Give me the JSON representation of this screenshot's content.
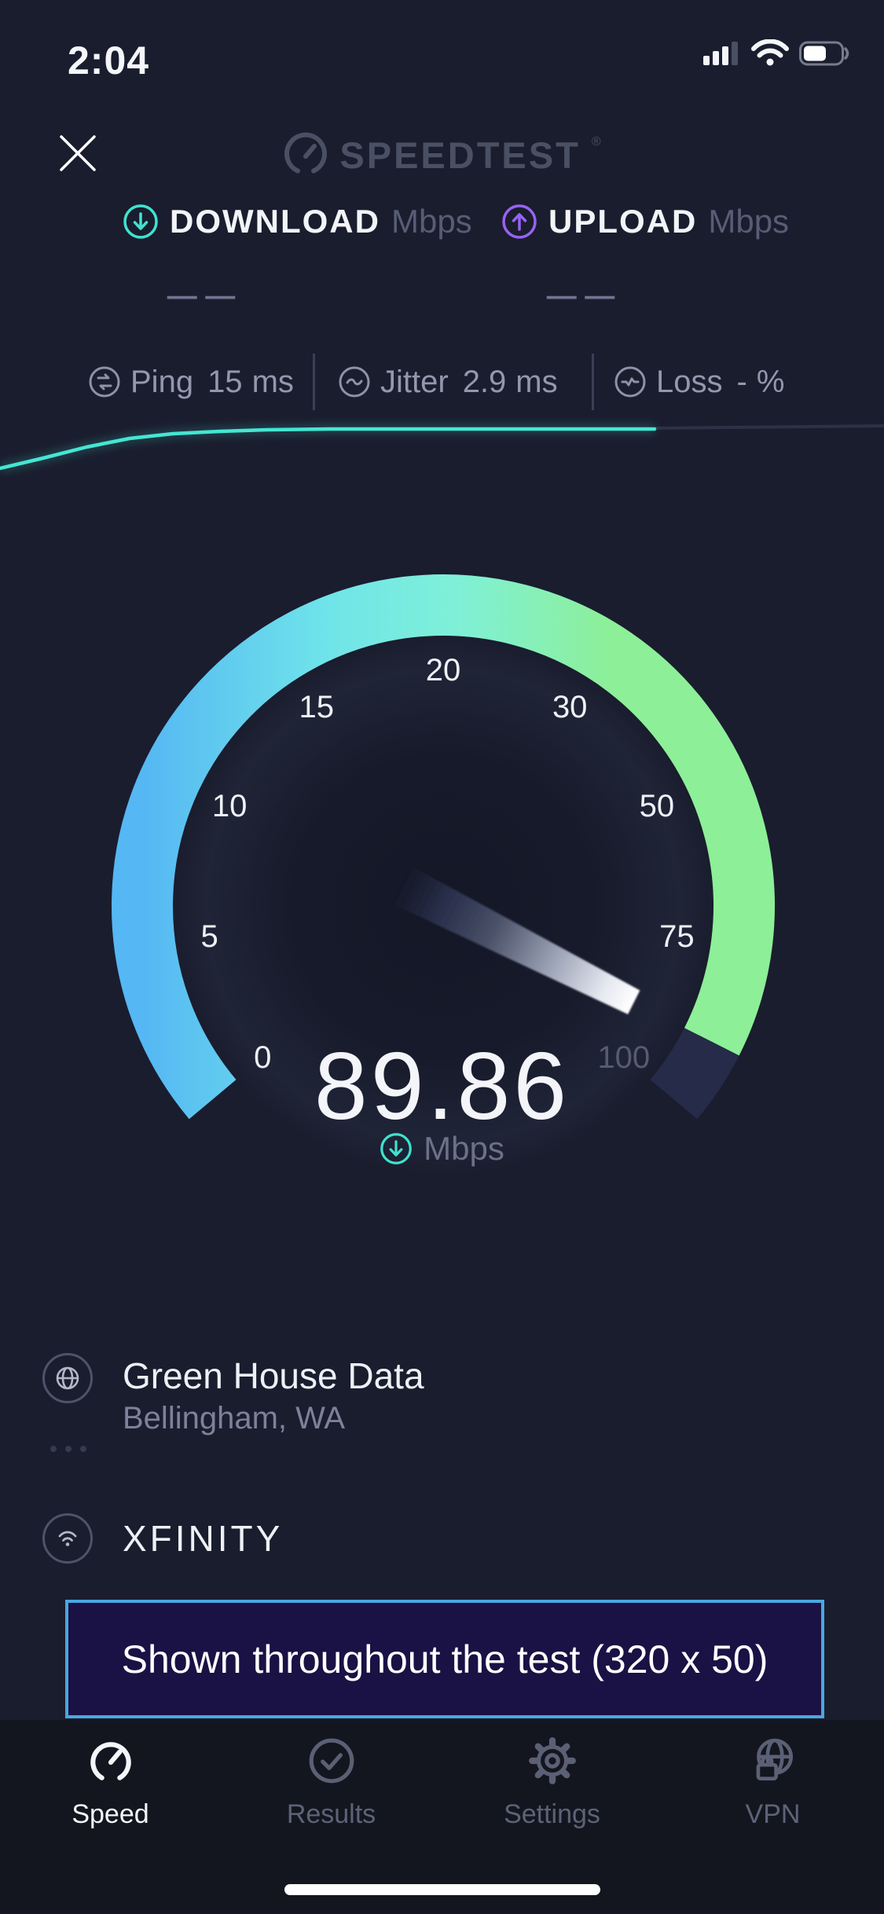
{
  "status_bar": {
    "time": "2:04"
  },
  "header": {
    "logo_text": "SPEEDTEST",
    "trademark": "®"
  },
  "metrics": {
    "download": {
      "label": "DOWNLOAD",
      "unit": "Mbps",
      "placeholder": "— —"
    },
    "upload": {
      "label": "UPLOAD",
      "unit": "Mbps",
      "placeholder": "— —"
    }
  },
  "stats": {
    "ping": {
      "label": "Ping",
      "value": "15",
      "unit": "ms"
    },
    "jitter": {
      "label": "Jitter",
      "value": "2.9",
      "unit": "ms"
    },
    "loss": {
      "label": "Loss",
      "value": "-",
      "unit": "%"
    }
  },
  "gauge": {
    "value": 89.86,
    "value_display": "89.86",
    "unit": "Mbps",
    "ticks": [
      0,
      5,
      10,
      15,
      20,
      30,
      50,
      75,
      100
    ],
    "dim_ticks": [
      100
    ],
    "start_angle": -130,
    "end_angle": 130
  },
  "sparkline": {
    "lit_points": [
      [
        0,
        596
      ],
      [
        55,
        583
      ],
      [
        110,
        569
      ],
      [
        165,
        558
      ],
      [
        220,
        552
      ],
      [
        280,
        549
      ],
      [
        340,
        547
      ],
      [
        420,
        546
      ],
      [
        520,
        546
      ],
      [
        660,
        546
      ],
      [
        833,
        546
      ]
    ],
    "trail_points": [
      [
        833,
        545
      ],
      [
        1125,
        542
      ]
    ]
  },
  "server": {
    "name": "Green House Data",
    "location": "Bellingham, WA"
  },
  "isp": {
    "name": "XFINITY"
  },
  "ad_banner": {
    "text": "Shown throughout the test (320 x 50)"
  },
  "tab_bar": {
    "items": [
      {
        "label": "Speed",
        "icon": "speed-gauge-icon",
        "active": true
      },
      {
        "label": "Results",
        "icon": "results-check-icon",
        "active": false
      },
      {
        "label": "Settings",
        "icon": "settings-gear-icon",
        "active": false
      },
      {
        "label": "VPN",
        "icon": "vpn-globe-lock-icon",
        "active": false
      }
    ]
  },
  "colors": {
    "bg": "#1a1d2e",
    "accent_teal": "#3fe3cf",
    "accent_purple": "#9763f2",
    "arc_blue": "#55b7f3",
    "arc_cyan": "#6fe3ea",
    "arc_teal": "#7ff0d8",
    "arc_green": "#8def97",
    "arc_unlit": "#252b49",
    "sparkline": "#45e6d2",
    "sparkline_trail": "#2c3146",
    "banner_bg": "#1a1145",
    "banner_border": "#4aa7e0"
  }
}
